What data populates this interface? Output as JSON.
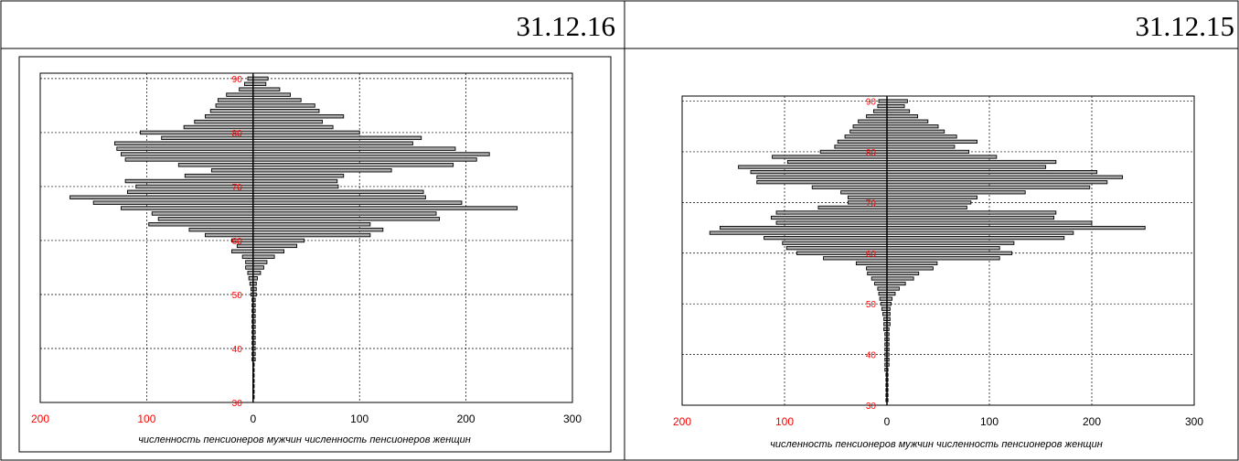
{
  "headers": [
    "31.12.16",
    "31.12.15"
  ],
  "colors": {
    "bar_fill": "#ababab",
    "bar_stroke": "#000000",
    "age_tick": "#ff0000",
    "value_tick": "#ff0000",
    "grid": "#000000"
  },
  "chart_data": [
    {
      "type": "bar",
      "orientation": "horizontal-pyramid",
      "date": "31.12.16",
      "xlabel": "численность пенсионеров мужчин  численность пенсионеров женщин",
      "x_tick_labels": [
        "200",
        "100",
        "0",
        "100",
        "200",
        "300"
      ],
      "xlim": [
        -200,
        300
      ],
      "ylim": [
        30,
        91
      ],
      "y_ticks": [
        30,
        40,
        50,
        60,
        70,
        80,
        90
      ],
      "grid": true,
      "ages": [
        90,
        89,
        88,
        87,
        86,
        85,
        84,
        83,
        82,
        81,
        80,
        79,
        78,
        77,
        76,
        75,
        74,
        73,
        72,
        71,
        70,
        69,
        68,
        67,
        66,
        65,
        64,
        63,
        62,
        61,
        60,
        59,
        58,
        57,
        56,
        55,
        54,
        53,
        52,
        51,
        50,
        49,
        48,
        47,
        46,
        45,
        44,
        43,
        42,
        41,
        40,
        39,
        38,
        37,
        36,
        35,
        34,
        33,
        32,
        31
      ],
      "series": [
        {
          "name": "численность пенсионеров мужчин",
          "values": [
            -5,
            -8,
            -13,
            -25,
            -33,
            -35,
            -40,
            -45,
            -55,
            -65,
            -106,
            -86,
            -130,
            -128,
            -124,
            -120,
            -70,
            -39,
            -64,
            -120,
            -110,
            -118,
            -172,
            -150,
            -124,
            -95,
            -89,
            -98,
            -60,
            -45,
            -20,
            -15,
            -20,
            -10,
            -7,
            -7,
            -5,
            -4,
            -3,
            -2,
            -2,
            -1,
            -1,
            -1,
            -1,
            -1,
            -1,
            -1,
            -1,
            -1,
            -1,
            -1,
            -1,
            0,
            0,
            0,
            0,
            0,
            0,
            0
          ]
        },
        {
          "name": "численность пенсионеров женщин",
          "values": [
            14,
            12,
            25,
            35,
            45,
            58,
            62,
            85,
            65,
            75,
            100,
            158,
            150,
            190,
            222,
            210,
            188,
            130,
            85,
            79,
            80,
            160,
            162,
            196,
            248,
            172,
            175,
            110,
            122,
            110,
            48,
            41,
            29,
            20,
            13,
            10,
            7,
            4,
            3,
            3,
            3,
            2,
            2,
            2,
            2,
            2,
            2,
            2,
            2,
            2,
            2,
            2,
            2,
            1,
            1,
            1,
            1,
            1,
            1,
            1
          ]
        }
      ]
    },
    {
      "type": "bar",
      "orientation": "horizontal-pyramid",
      "date": "31.12.15",
      "xlabel": "численность пенсионеров мужчин  численность пенсионеров женщин",
      "x_tick_labels": [
        "200",
        "100",
        "0",
        "100",
        "200",
        "300"
      ],
      "xlim": [
        -200,
        300
      ],
      "ylim": [
        30,
        91
      ],
      "y_ticks": [
        30,
        40,
        50,
        60,
        70,
        80,
        90
      ],
      "grid": true,
      "ages": [
        90,
        89,
        88,
        87,
        86,
        85,
        84,
        83,
        82,
        81,
        80,
        79,
        78,
        77,
        76,
        75,
        74,
        73,
        72,
        71,
        70,
        69,
        68,
        67,
        66,
        65,
        64,
        63,
        62,
        61,
        60,
        59,
        58,
        57,
        56,
        55,
        54,
        53,
        52,
        51,
        50,
        49,
        48,
        47,
        46,
        45,
        44,
        43,
        42,
        41,
        40,
        39,
        38,
        37,
        36,
        35,
        34,
        33,
        32,
        31
      ],
      "series": [
        {
          "name": "численность пенсионеров мужчин",
          "values": [
            -8,
            -9,
            -13,
            -20,
            -28,
            -33,
            -36,
            -41,
            -48,
            -51,
            -65,
            -112,
            -97,
            -145,
            -133,
            -127,
            -127,
            -73,
            -45,
            -38,
            -38,
            -67,
            -108,
            -113,
            -108,
            -163,
            -173,
            -120,
            -102,
            -98,
            -88,
            -62,
            -30,
            -20,
            -19,
            -15,
            -12,
            -9,
            -8,
            -7,
            -6,
            -5,
            -4,
            -3,
            -3,
            -3,
            -2,
            -2,
            -2,
            -2,
            -2,
            -2,
            -2,
            -2,
            -1,
            -1,
            -1,
            -1,
            -1,
            -1
          ]
        },
        {
          "name": "численность пенсионеров женщин",
          "values": [
            20,
            17,
            22,
            30,
            40,
            50,
            56,
            68,
            88,
            66,
            80,
            107,
            165,
            155,
            205,
            230,
            215,
            198,
            135,
            88,
            82,
            78,
            165,
            163,
            200,
            252,
            182,
            173,
            124,
            110,
            122,
            110,
            49,
            45,
            31,
            26,
            18,
            12,
            8,
            5,
            4,
            3,
            3,
            3,
            3,
            2,
            2,
            2,
            2,
            2,
            2,
            2,
            2,
            1,
            1,
            1,
            1,
            1,
            1,
            1
          ]
        }
      ]
    }
  ]
}
